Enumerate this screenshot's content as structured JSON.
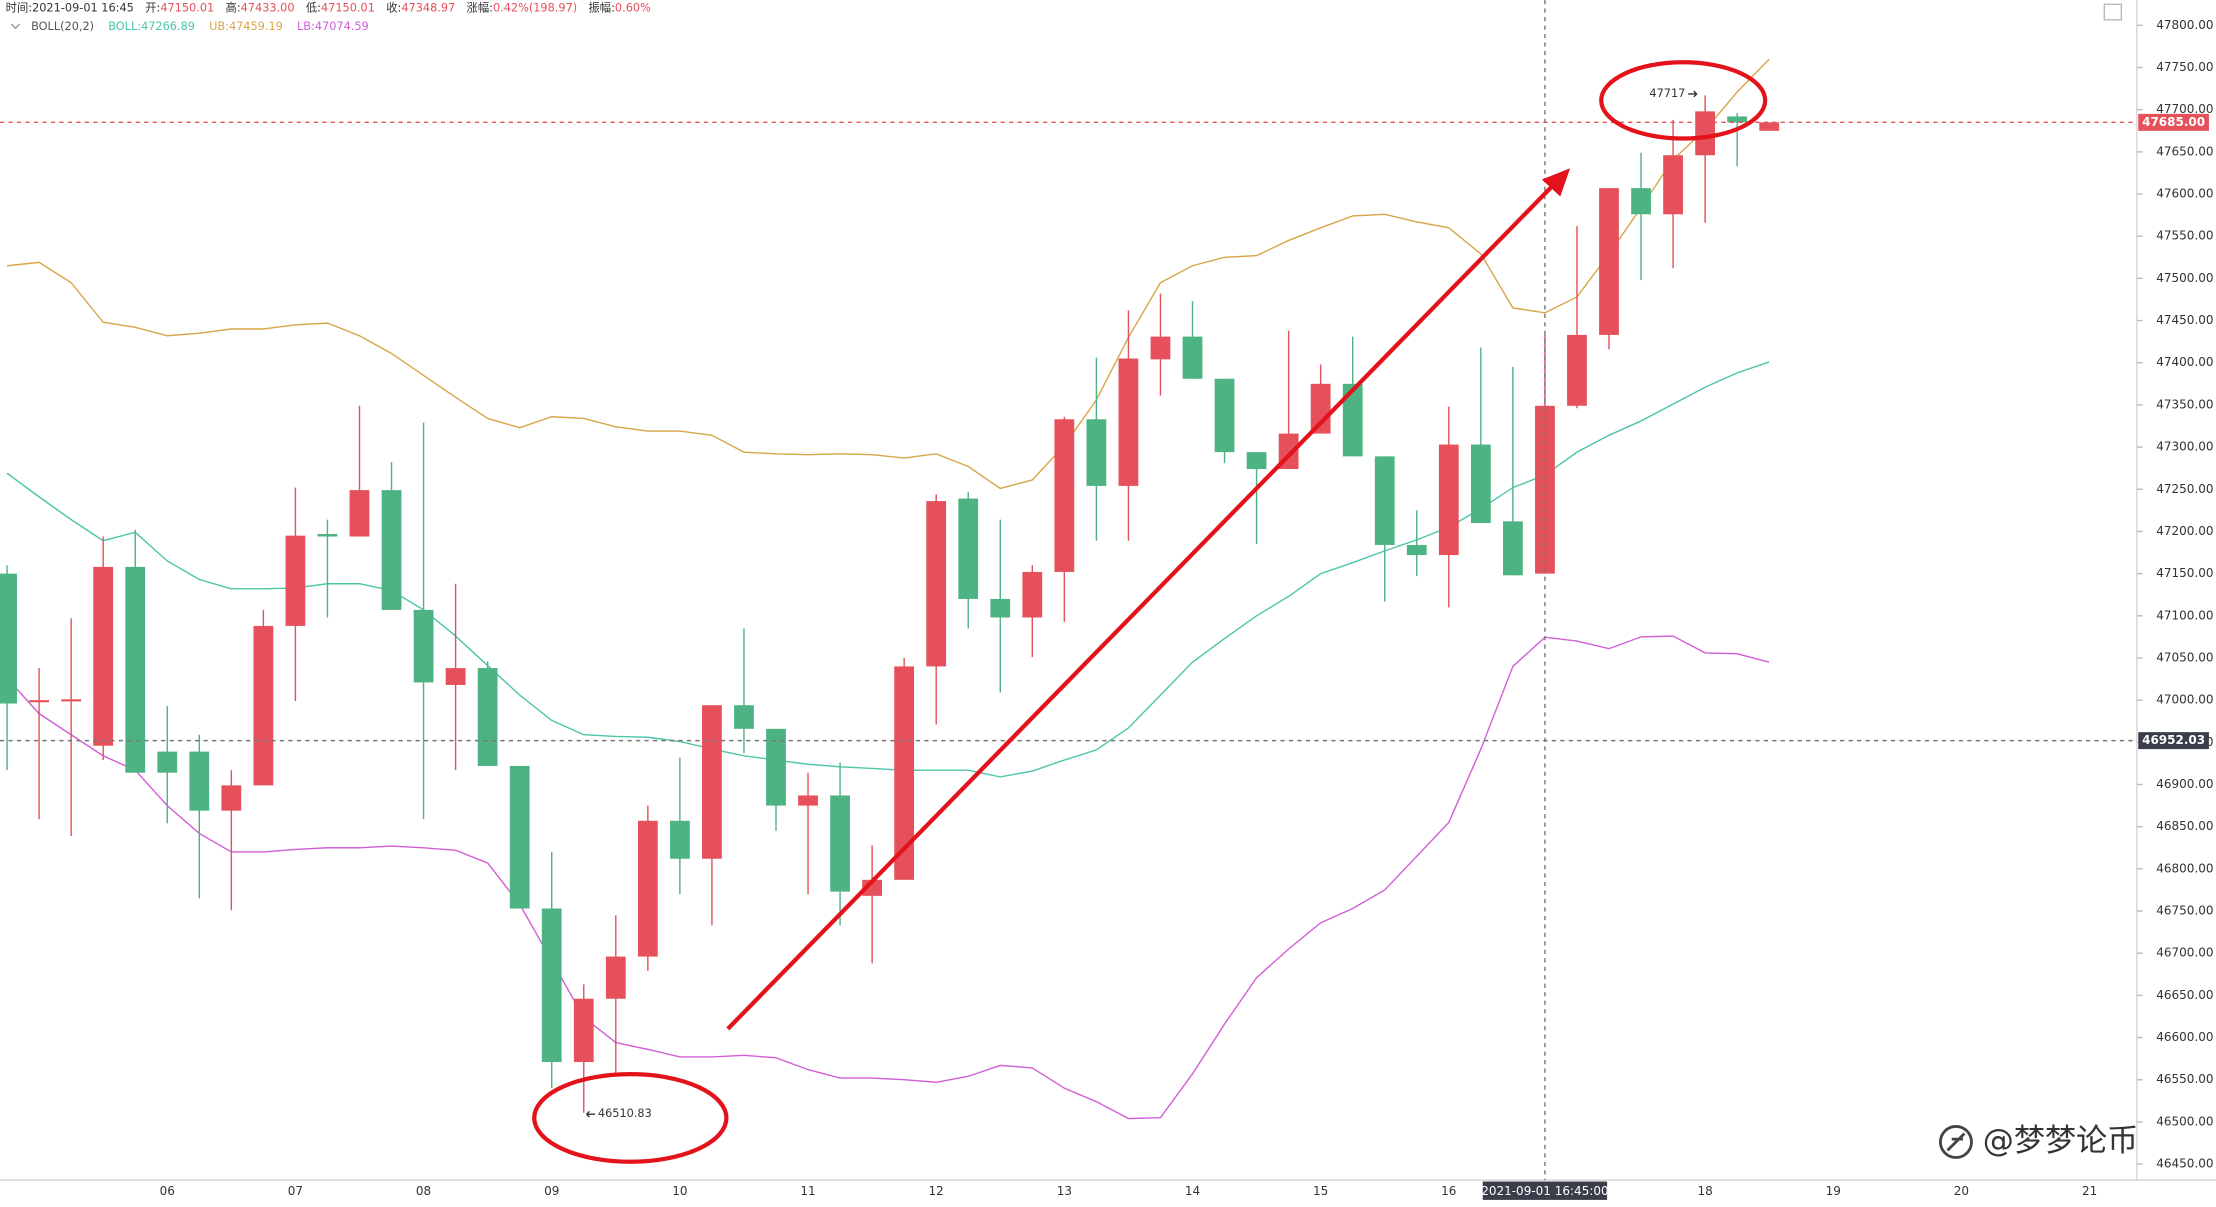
{
  "chart_data": {
    "type": "candlestick",
    "separator": ":",
    "header": [
      {
        "label": "时间",
        "value": "2021-09-01 16:45"
      },
      {
        "label": "开",
        "value": "47150.01"
      },
      {
        "label": "高",
        "value": "47433.00"
      },
      {
        "label": "低",
        "value": "47150.01"
      },
      {
        "label": "收",
        "value": "47348.97"
      },
      {
        "label": "涨幅",
        "value": "0.42%(198.97)"
      },
      {
        "label": "振幅",
        "value": "0.60%"
      }
    ],
    "indicator": "BOLL(20,2)",
    "categories": [
      null,
      null,
      null,
      null,
      null,
      "06",
      null,
      null,
      null,
      "07",
      null,
      null,
      null,
      "08",
      null,
      null,
      null,
      "09",
      null,
      null,
      null,
      "10",
      null,
      null,
      null,
      "11",
      null,
      null,
      null,
      "12",
      null,
      null,
      null,
      "13",
      null,
      null,
      null,
      "14",
      null,
      null,
      null,
      "15",
      null,
      null,
      null,
      "16",
      null,
      null,
      null,
      null,
      null,
      null,
      null,
      "18",
      null,
      null,
      null,
      "19",
      null,
      null,
      null,
      "20",
      null,
      null,
      null,
      "21",
      null
    ],
    "open": [
      47150,
      46998,
      47000,
      46946,
      47158,
      46939,
      46939,
      46869,
      46899,
      47088,
      47197,
      47194,
      47249,
      47107,
      47018,
      47038,
      46922,
      46753,
      46571,
      46646,
      46696,
      46857,
      46812,
      46994,
      46966,
      46875,
      46887,
      46768,
      46787,
      47040,
      47239,
      47120,
      47098,
      47152,
      47333,
      47254,
      47404,
      47431,
      47381,
      47294,
      47274,
      47316,
      47375,
      47289,
      47184,
      47172,
      47303,
      47212,
      47150.01,
      47349,
      47433,
      47607,
      47576,
      47646,
      47692,
      47675,
      null,
      null,
      null,
      null,
      null,
      null,
      null,
      null,
      null,
      null,
      null
    ],
    "high": [
      47160,
      47038,
      47097,
      47194,
      47202,
      46993,
      46959,
      46917,
      47107,
      47252,
      47214,
      47349,
      47282,
      47329,
      47138,
      47046,
      46922,
      46820,
      46663,
      46745,
      46875,
      46932,
      46994,
      47085,
      46966,
      46914,
      46926,
      46828,
      47050,
      47244,
      47247,
      47214,
      47160,
      47336,
      47406,
      47462,
      47482,
      47473,
      47381,
      47294,
      47438,
      47398,
      47431,
      47289,
      47225,
      47348,
      47418,
      47395,
      47433,
      47562,
      47607,
      47649,
      47688,
      47717,
      47696,
      47685,
      null,
      null,
      null,
      null,
      null,
      null,
      null,
      null,
      null,
      null,
      null
    ],
    "low": [
      46917,
      46859,
      46839,
      46929,
      46914,
      46854,
      46765,
      46751,
      46899,
      46999,
      47098,
      47194,
      47107,
      46859,
      46917,
      46922,
      46753,
      46540,
      46510.83,
      46557,
      46679,
      46770,
      46733,
      46937,
      46845,
      46770,
      46733,
      46688,
      46787,
      46971,
      47085,
      47009,
      47051,
      47093,
      47189,
      47189,
      47361,
      47381,
      47281,
      47185,
      47274,
      47316,
      47289,
      47117,
      47147,
      47110,
      47210,
      47148,
      47150.01,
      47346,
      47416,
      47498,
      47512,
      47566,
      47633,
      47675,
      null,
      null,
      null,
      null,
      null,
      null,
      null,
      null,
      null,
      null,
      null
    ],
    "close": [
      46996,
      47000,
      47001,
      47158,
      46914,
      46914,
      46869,
      46899,
      47088,
      47195,
      47194,
      47249,
      47107,
      47021,
      47038,
      46922,
      46753,
      46571,
      46646,
      46696,
      46857,
      46812,
      46994,
      46966,
      46875,
      46887,
      46773,
      46787,
      47040,
      47236,
      47120,
      47098,
      47152,
      47333,
      47254,
      47405,
      47431,
      47381,
      47294,
      47274,
      47316,
      47375,
      47289,
      47184,
      47172,
      47303,
      47210,
      47148,
      47348.97,
      47433,
      47607,
      47576,
      47646,
      47698,
      47685,
      47685,
      null,
      null,
      null,
      null,
      null,
      null,
      null,
      null,
      null,
      null,
      null
    ],
    "up_color": "#e5505a",
    "down_color": "#4eb383",
    "series": [
      {
        "name": "BOLL",
        "legend_value": "47266.89",
        "color": "#4cc5aa",
        "values": [
          47269,
          47241,
          47214,
          47189,
          47199,
          47165,
          47143,
          47132,
          47132,
          47133,
          47138,
          47138,
          47130,
          47107,
          47076,
          47041,
          47006,
          46976,
          46959,
          46957,
          46956,
          46951,
          46942,
          46934,
          46929,
          46924,
          46921,
          46919,
          46917,
          46917,
          46917,
          46909,
          46916,
          46929,
          46941,
          46967,
          47006,
          47045,
          47073,
          47100,
          47123,
          47150,
          47163,
          47177,
          47190,
          47205,
          47227,
          47252,
          47266.89,
          47294,
          47314,
          47331,
          47351,
          47371,
          47388,
          47401,
          null,
          null,
          null,
          null,
          null,
          null,
          null,
          null,
          null,
          null,
          null
        ]
      },
      {
        "name": "UB",
        "legend_value": "47459.19",
        "color": "#d8a64a",
        "values": [
          47515,
          47519,
          47495,
          47448,
          47442,
          47432,
          47435,
          47440,
          47440,
          47445,
          47447,
          47432,
          47411,
          47385,
          47359,
          47334,
          47323,
          47336,
          47334,
          47324,
          47319,
          47319,
          47314,
          47294,
          47292,
          47291,
          47292,
          47291,
          47287,
          47292,
          47277,
          47251,
          47261,
          47302,
          47356,
          47430,
          47495,
          47515,
          47525,
          47527,
          47545,
          47560,
          47574,
          47576,
          47567,
          47560,
          47529,
          47465,
          47459.19,
          47478,
          47529,
          47584,
          47641,
          47676,
          47721,
          47760,
          null,
          null,
          null,
          null,
          null,
          null,
          null,
          null,
          null,
          null,
          null
        ]
      },
      {
        "name": "LB",
        "legend_value": "47074.59",
        "color": "#d35fd6",
        "values": [
          47026,
          46984,
          46959,
          46934,
          46917,
          46875,
          46842,
          46820,
          46820,
          46823,
          46825,
          46825,
          46827,
          46825,
          46822,
          46807,
          46758,
          46691,
          46624,
          46594,
          46586,
          46577,
          46577,
          46579,
          46576,
          46562,
          46552,
          46552,
          46550,
          46547,
          46554,
          46567,
          46564,
          46540,
          46524,
          46504,
          46505,
          46557,
          46616,
          46671,
          46705,
          46736,
          46753,
          46775,
          46815,
          46855,
          46942,
          47040,
          47074.59,
          47070,
          47061,
          47075,
          47076,
          47056,
          47055,
          47045,
          null,
          null,
          null,
          null,
          null,
          null,
          null,
          null,
          null,
          null,
          null
        ]
      }
    ],
    "ylim": [
      46431,
      47830
    ],
    "yticks": [
      {
        "value": 46450,
        "label": "46450.00"
      },
      {
        "value": 46500,
        "label": "46500.00"
      },
      {
        "value": 46550,
        "label": "46550.00"
      },
      {
        "value": 46600,
        "label": "46600.00"
      },
      {
        "value": 46650,
        "label": "46650.00"
      },
      {
        "value": 46700,
        "label": "46700.00"
      },
      {
        "value": 46750,
        "label": "46750.00"
      },
      {
        "value": 46800,
        "label": "46800.00"
      },
      {
        "value": 46850,
        "label": "46850.00"
      },
      {
        "value": 46900,
        "label": "46900.00"
      },
      {
        "value": 46950,
        "label": "46950.00"
      },
      {
        "value": 47000,
        "label": "47000.00"
      },
      {
        "value": 47050,
        "label": "47050.00"
      },
      {
        "value": 47100,
        "label": "47100.00"
      },
      {
        "value": 47150,
        "label": "47150.00"
      },
      {
        "value": 47200,
        "label": "47200.00"
      },
      {
        "value": 47250,
        "label": "47250.00"
      },
      {
        "value": 47300,
        "label": "47300.00"
      },
      {
        "value": 47350,
        "label": "47350.00"
      },
      {
        "value": 47400,
        "label": "47400.00"
      },
      {
        "value": 47450,
        "label": "47450.00"
      },
      {
        "value": 47500,
        "label": "47500.00"
      },
      {
        "value": 47550,
        "label": "47550.00"
      },
      {
        "value": 47600,
        "label": "47600.00"
      },
      {
        "value": 47650,
        "label": "47650.00"
      },
      {
        "value": 47700,
        "label": "47700.00"
      },
      {
        "value": 47750,
        "label": "47750.00"
      },
      {
        "value": 47800,
        "label": "47800.00"
      }
    ],
    "last_price": {
      "value": 47685,
      "label": "47685.00"
    },
    "crosshair": {
      "x_label": "2021-09-01 16:45:00",
      "y": {
        "value": 46952.03,
        "label": "46952.03"
      }
    },
    "watermark": "@梦梦论币"
  }
}
